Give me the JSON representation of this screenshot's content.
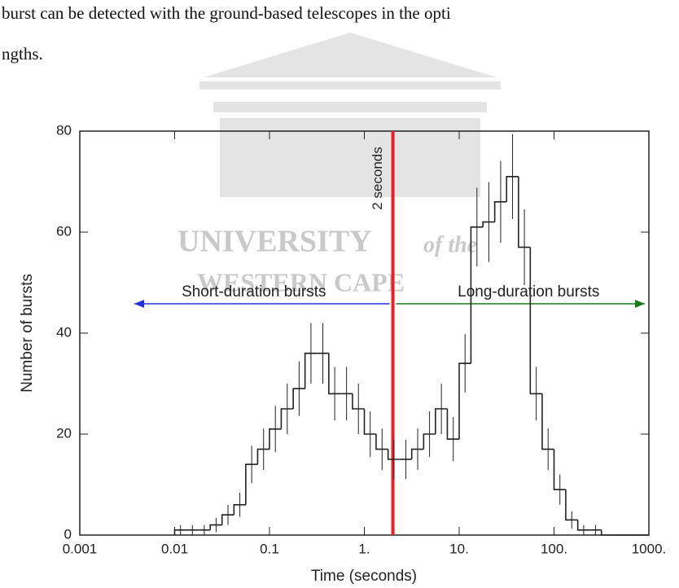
{
  "document": {
    "lines": [
      "burst can be detected with the ground-based telescopes in the opti",
      "ngths."
    ]
  },
  "watermark": {
    "line1": "UNIVERSITY",
    "line1_suffix": "of the",
    "line2": "WESTERN CAPE"
  },
  "chart_data": {
    "type": "histogram",
    "ylabel": "Number of bursts",
    "xlabel": "Time (seconds)",
    "log_x": true,
    "xlim": [
      0.001,
      1000
    ],
    "ylim": [
      0,
      80
    ],
    "xticks": [
      0.001,
      0.01,
      0.1,
      {
        "value": 1,
        "label": "1."
      },
      {
        "value": 10,
        "label": "10."
      },
      {
        "value": 100,
        "label": "100."
      },
      {
        "value": 1000,
        "label": "1000."
      }
    ],
    "yticks": [
      0,
      20,
      40,
      60,
      80
    ],
    "color": "#222222",
    "bins": [
      0.01,
      0.0133,
      0.0178,
      0.0237,
      0.0316,
      0.0422,
      0.0562,
      0.075,
      0.1,
      0.133,
      0.178,
      0.237,
      0.316,
      0.422,
      0.562,
      0.75,
      1,
      1.33,
      1.78,
      2.37,
      3.16,
      4.22,
      5.62,
      7.5,
      10,
      13.3,
      17.8,
      23.7,
      31.6,
      42.2,
      56.2,
      75,
      100,
      133,
      178,
      237,
      316,
      422,
      562,
      750,
      1000
    ],
    "values": [
      1,
      1,
      1,
      2,
      4,
      6,
      14,
      17,
      21,
      25,
      29,
      36,
      36,
      28,
      28,
      25,
      20,
      17,
      15,
      15,
      17,
      20,
      25,
      19,
      34,
      61,
      62,
      66,
      71,
      57,
      28,
      17,
      9,
      3,
      1,
      1,
      0,
      0,
      0,
      0
    ],
    "errors": [
      1,
      1,
      1,
      1.4,
      2,
      2.4,
      3.7,
      4.1,
      4.6,
      5,
      5.4,
      6,
      6,
      5.3,
      5.3,
      5,
      4.5,
      4.1,
      3.9,
      3.9,
      4.1,
      4.5,
      5,
      4.4,
      5.8,
      7.8,
      7.9,
      8.1,
      8.4,
      7.5,
      5.3,
      4.1,
      3,
      1.7,
      1,
      1,
      0,
      0,
      0,
      0
    ],
    "threshold": {
      "value": 2,
      "label": "2 seconds",
      "color": "#e8202a"
    },
    "left_arrow": {
      "label": "Short-duration bursts",
      "color": "#2233dd"
    },
    "right_arrow": {
      "label": "Long-duration bursts",
      "color": "#1a7a1a"
    }
  }
}
